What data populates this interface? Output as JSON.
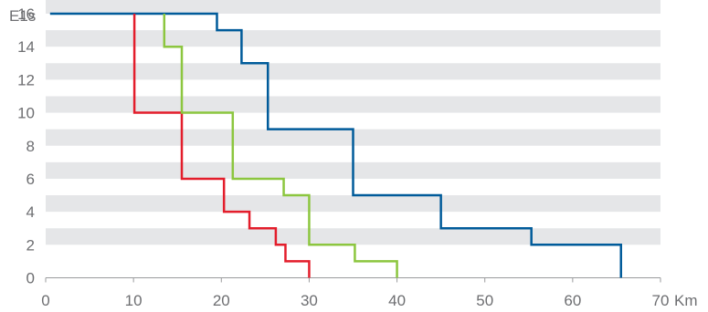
{
  "chart_data": {
    "type": "line",
    "step": true,
    "ylabel": "E1s",
    "xlabel": "Km",
    "xlim": [
      0,
      70
    ],
    "ylim": [
      0,
      16
    ],
    "x_ticks": [
      0,
      10,
      20,
      30,
      40,
      50,
      60,
      70
    ],
    "y_ticks": [
      0,
      2,
      4,
      6,
      8,
      10,
      12,
      14,
      16
    ],
    "x_tick_labels": [
      "0",
      "10",
      "20",
      "30",
      "40",
      "50",
      "60",
      "70"
    ],
    "y_tick_labels": [
      "0",
      "2",
      "4",
      "6",
      "8",
      "10",
      "12",
      "14",
      "16"
    ],
    "banded_background": true,
    "band_color": "#e5e6e8",
    "series": [
      {
        "color": "#005b9a",
        "points": [
          [
            0.5,
            16
          ],
          [
            19.5,
            16
          ],
          [
            19.5,
            15
          ],
          [
            22.3,
            15
          ],
          [
            22.3,
            13
          ],
          [
            25.3,
            13
          ],
          [
            25.3,
            9
          ],
          [
            35,
            9
          ],
          [
            35,
            5
          ],
          [
            45,
            5
          ],
          [
            45,
            3
          ],
          [
            55.3,
            3
          ],
          [
            55.3,
            2
          ],
          [
            65.5,
            2
          ],
          [
            65.5,
            0
          ]
        ]
      },
      {
        "color": "#e31d2b",
        "points": [
          [
            10.1,
            16
          ],
          [
            10.1,
            10
          ],
          [
            15.5,
            10
          ],
          [
            15.5,
            6
          ],
          [
            20.3,
            6
          ],
          [
            20.3,
            4
          ],
          [
            23.2,
            4
          ],
          [
            23.2,
            3
          ],
          [
            26.2,
            3
          ],
          [
            26.2,
            2
          ],
          [
            27.3,
            2
          ],
          [
            27.3,
            1
          ],
          [
            30,
            1
          ],
          [
            30,
            0
          ]
        ]
      },
      {
        "color": "#8cc63f",
        "points": [
          [
            13.5,
            16
          ],
          [
            13.5,
            14
          ],
          [
            15.5,
            14
          ],
          [
            15.5,
            10
          ],
          [
            21.3,
            10
          ],
          [
            21.3,
            6
          ],
          [
            27.1,
            6
          ],
          [
            27.1,
            5
          ],
          [
            30,
            5
          ],
          [
            30,
            2
          ],
          [
            35.2,
            2
          ],
          [
            35.2,
            1
          ],
          [
            40,
            1
          ],
          [
            40,
            0
          ]
        ]
      }
    ]
  }
}
